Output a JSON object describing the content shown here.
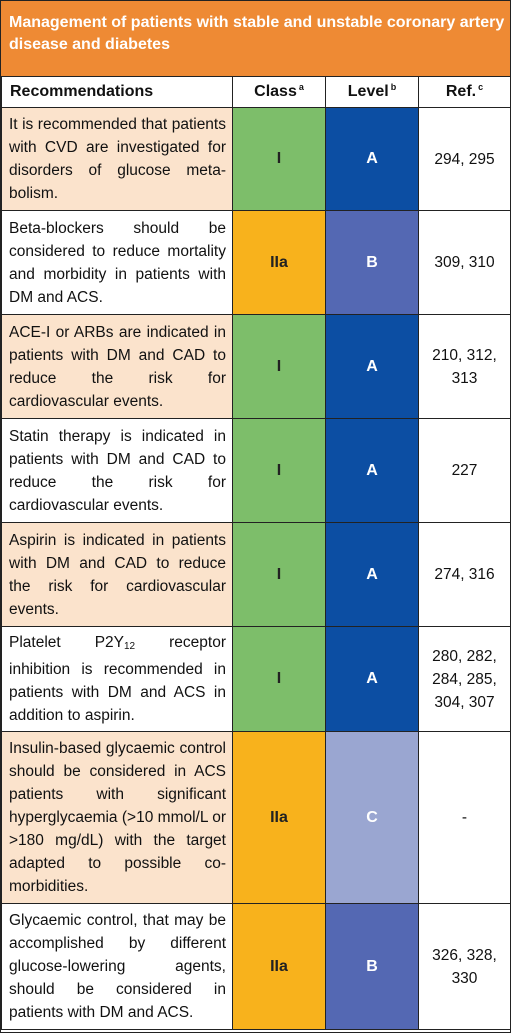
{
  "title": "Management of patients with stable and unstable coronary artery disease and diabetes",
  "header": {
    "recommendations": "Recommendations",
    "class": "Class",
    "class_sup": "a",
    "level": "Level",
    "level_sup": "b",
    "ref": "Ref.",
    "ref_sup": "c"
  },
  "rows": [
    {
      "text": "It is recommended that patients with CVD are investigated for disorders of glucose meta-bolism.",
      "class": "I",
      "level": "A",
      "ref": "294, 295"
    },
    {
      "text": "Beta-blockers should be considered to reduce mortality and morbidity in patients with DM and ACS.",
      "class": "IIa",
      "level": "B",
      "ref": "309, 310"
    },
    {
      "text": "ACE-I or ARBs are indicated in patients with DM and CAD to reduce the risk for cardiovascular events.",
      "class": "I",
      "level": "A",
      "ref": "210, 312, 313"
    },
    {
      "text": "Statin therapy is indicated in patients with DM and CAD to reduce the risk for cardiovascular events.",
      "class": "I",
      "level": "A",
      "ref": "227"
    },
    {
      "text": "Aspirin is indicated in patients with DM and CAD to reduce the risk for cardiovascular events.",
      "class": "I",
      "level": "A",
      "ref": "274, 316"
    },
    {
      "text_before": "Platelet P2Y",
      "text_sub": "12",
      "text_after": " receptor inhibition is recommended in patients with DM and ACS in addition to aspirin.",
      "class": "I",
      "level": "A",
      "ref": "280, 282, 284, 285, 304, 307"
    },
    {
      "text": "Insulin-based glycaemic control should be considered in ACS patients with significant hyperglycaemia (>10 mmol/L or >180 mg/dL) with the target adapted to possible co-morbidities.",
      "class": "IIa",
      "level": "C",
      "ref": "-"
    },
    {
      "text": "Glycaemic control, that may be accomplished by different glucose-lowering agents, should be considered in patients with DM and ACS.",
      "class": "IIa",
      "level": "B",
      "ref": "326, 328, 330"
    }
  ]
}
